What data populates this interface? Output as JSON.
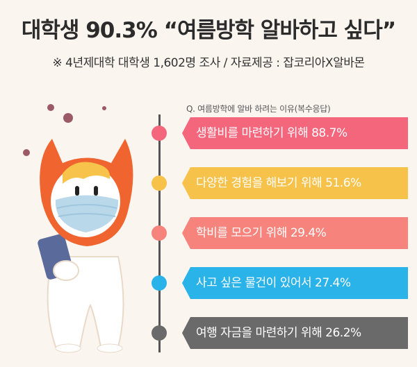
{
  "header": {
    "title": "대학생 90.3% “여름방학 알바하고 싶다”",
    "subtitle": "※ 4년제대학 대학생 1,602명 조사 / 자료제공 : 잡코리아X알바몬"
  },
  "chart_data": {
    "type": "bar",
    "title": "Q. 여름방학에 알바 하려는 이유(복수응답)",
    "categories": [
      "생활비를 마련하기 위해",
      "다양한 경험을 해보기 위해",
      "학비를 모으기 위해",
      "사고 싶은 물건이 있어서",
      "여행 자금을 마련하기 위해"
    ],
    "values": [
      88.7,
      51.6,
      29.4,
      27.4,
      26.2
    ],
    "labels": [
      "생활비를 마련하기 위해 88.7%",
      "다양한 경험을 해보기 위해 51.6%",
      "학비를 모으기 위해 29.4%",
      "사고 싶은 물건이 있어서 27.4%",
      "여행 자금을 마련하기 위해 26.2%"
    ],
    "colors": [
      "#f4667c",
      "#f6c24a",
      "#f6847c",
      "#2ab3e9",
      "#6a6a6a"
    ]
  }
}
